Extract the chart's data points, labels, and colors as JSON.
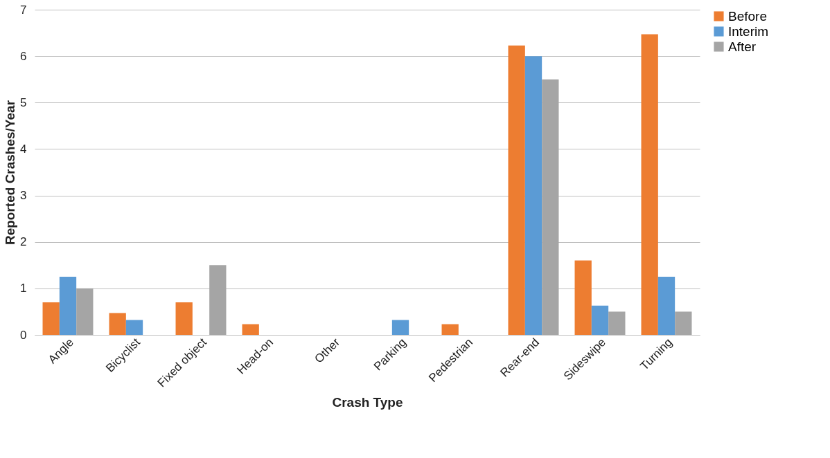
{
  "chart_data": {
    "type": "bar",
    "xlabel": "Crash Type",
    "ylabel": "Reported Crashes/Year",
    "categories": [
      "Angle",
      "Bicyclist",
      "Fixed object",
      "Head-on",
      "Other",
      "Parking",
      "Pedestrian",
      "Rear-end",
      "Sideswipe",
      "Turning"
    ],
    "series": [
      {
        "name": "Before",
        "color": "#ed7d31",
        "values": [
          0.7,
          0.47,
          0.7,
          0.23,
          0,
          0,
          0.23,
          6.23,
          1.6,
          6.47
        ]
      },
      {
        "name": "Interim",
        "color": "#5b9bd5",
        "values": [
          1.25,
          0.32,
          0,
          0,
          0,
          0.32,
          0,
          6.0,
          0.63,
          1.25
        ]
      },
      {
        "name": "After",
        "color": "#a5a5a5",
        "values": [
          1.0,
          0,
          1.5,
          0,
          0,
          0,
          0,
          5.5,
          0.5,
          0.5
        ]
      }
    ],
    "ylim": [
      0,
      7
    ],
    "yticks": [
      0,
      1,
      2,
      3,
      4,
      5,
      6,
      7
    ],
    "grid": "y",
    "legend": "right"
  }
}
